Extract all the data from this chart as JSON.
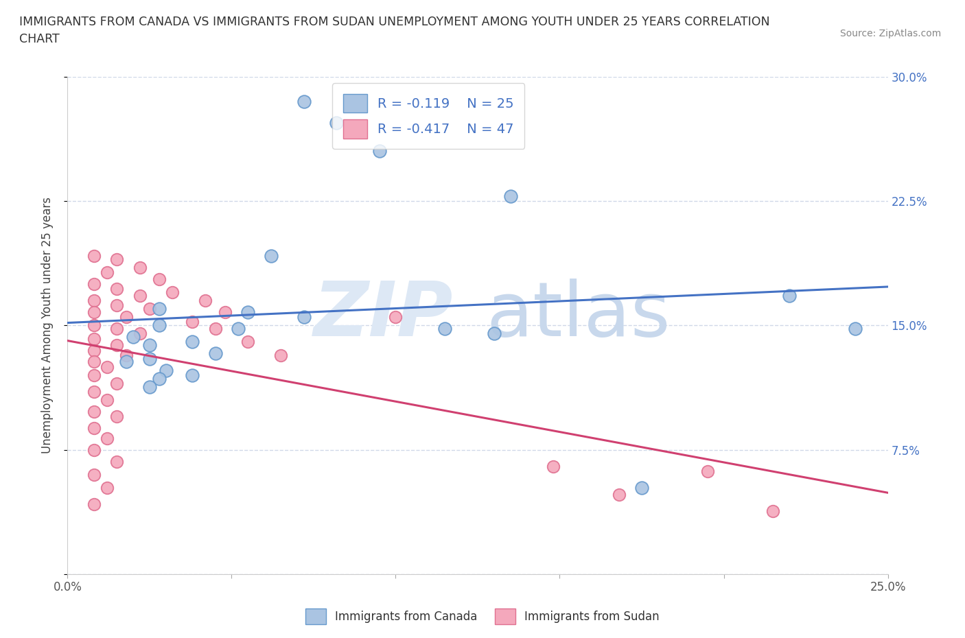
{
  "title_line1": "IMMIGRANTS FROM CANADA VS IMMIGRANTS FROM SUDAN UNEMPLOYMENT AMONG YOUTH UNDER 25 YEARS CORRELATION",
  "title_line2": "CHART",
  "source": "Source: ZipAtlas.com",
  "ylabel": "Unemployment Among Youth under 25 years",
  "xlim": [
    0.0,
    0.25
  ],
  "ylim": [
    0.0,
    0.3
  ],
  "canada_color": "#aac4e2",
  "canada_edge_color": "#6699cc",
  "sudan_color": "#f4a8bc",
  "sudan_edge_color": "#e07090",
  "canada_line_color": "#4472c4",
  "sudan_line_color": "#d04070",
  "legend_text_color": "#4472c4",
  "canada_R": -0.119,
  "canada_N": 25,
  "sudan_R": -0.417,
  "sudan_N": 47,
  "canada_points": [
    [
      0.072,
      0.285
    ],
    [
      0.082,
      0.272
    ],
    [
      0.095,
      0.255
    ],
    [
      0.135,
      0.228
    ],
    [
      0.062,
      0.192
    ],
    [
      0.028,
      0.16
    ],
    [
      0.055,
      0.158
    ],
    [
      0.072,
      0.155
    ],
    [
      0.028,
      0.15
    ],
    [
      0.052,
      0.148
    ],
    [
      0.02,
      0.143
    ],
    [
      0.038,
      0.14
    ],
    [
      0.025,
      0.138
    ],
    [
      0.045,
      0.133
    ],
    [
      0.025,
      0.13
    ],
    [
      0.018,
      0.128
    ],
    [
      0.03,
      0.123
    ],
    [
      0.038,
      0.12
    ],
    [
      0.028,
      0.118
    ],
    [
      0.025,
      0.113
    ],
    [
      0.115,
      0.148
    ],
    [
      0.13,
      0.145
    ],
    [
      0.22,
      0.168
    ],
    [
      0.24,
      0.148
    ],
    [
      0.175,
      0.052
    ]
  ],
  "sudan_points": [
    [
      0.008,
      0.192
    ],
    [
      0.015,
      0.19
    ],
    [
      0.022,
      0.185
    ],
    [
      0.012,
      0.182
    ],
    [
      0.028,
      0.178
    ],
    [
      0.008,
      0.175
    ],
    [
      0.015,
      0.172
    ],
    [
      0.022,
      0.168
    ],
    [
      0.008,
      0.165
    ],
    [
      0.015,
      0.162
    ],
    [
      0.025,
      0.16
    ],
    [
      0.008,
      0.158
    ],
    [
      0.018,
      0.155
    ],
    [
      0.008,
      0.15
    ],
    [
      0.015,
      0.148
    ],
    [
      0.022,
      0.145
    ],
    [
      0.008,
      0.142
    ],
    [
      0.015,
      0.138
    ],
    [
      0.008,
      0.135
    ],
    [
      0.018,
      0.132
    ],
    [
      0.008,
      0.128
    ],
    [
      0.012,
      0.125
    ],
    [
      0.008,
      0.12
    ],
    [
      0.015,
      0.115
    ],
    [
      0.008,
      0.11
    ],
    [
      0.012,
      0.105
    ],
    [
      0.008,
      0.098
    ],
    [
      0.015,
      0.095
    ],
    [
      0.008,
      0.088
    ],
    [
      0.012,
      0.082
    ],
    [
      0.008,
      0.075
    ],
    [
      0.015,
      0.068
    ],
    [
      0.008,
      0.06
    ],
    [
      0.012,
      0.052
    ],
    [
      0.008,
      0.042
    ],
    [
      0.032,
      0.17
    ],
    [
      0.042,
      0.165
    ],
    [
      0.048,
      0.158
    ],
    [
      0.038,
      0.152
    ],
    [
      0.045,
      0.148
    ],
    [
      0.055,
      0.14
    ],
    [
      0.065,
      0.132
    ],
    [
      0.1,
      0.155
    ],
    [
      0.148,
      0.065
    ],
    [
      0.168,
      0.048
    ],
    [
      0.195,
      0.062
    ],
    [
      0.215,
      0.038
    ]
  ],
  "background_color": "#ffffff",
  "grid_color": "#d0d8e8",
  "plot_bg_color": "#ffffff"
}
